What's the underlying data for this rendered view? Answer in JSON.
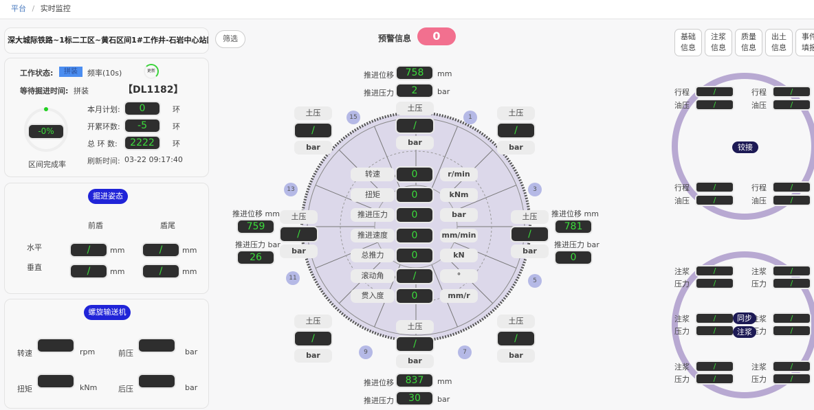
{
  "breadcrumb": {
    "home": "平台",
    "sep": "/",
    "current": "实时监控"
  },
  "project": {
    "title": "深大城际铁路~1标二工区~黄石区间1#工作井-石岩中心站区间"
  },
  "status": {
    "work_state_label": "工作状态:",
    "work_state": "拼装",
    "freq": "频率(10s)",
    "refresh": "更新",
    "wait_label": "等待掘进时间:",
    "wait_value": "拼装",
    "ring_code": "【DL1182】",
    "completion": "-0%",
    "completion_label": "区间完成率",
    "completion_fraction": 0,
    "rows": [
      {
        "label": "本月计划:",
        "value": "0",
        "unit": "环"
      },
      {
        "label": "开累环数:",
        "value": "-5",
        "unit": "环"
      },
      {
        "label": "总 环 数:",
        "value": "2222",
        "unit": "环"
      }
    ],
    "refresh_label": "刷新时间:",
    "refresh_time": "03-22 09:17:40"
  },
  "attitude": {
    "title": "掘进姿态",
    "col1": "前盾",
    "col2": "盾尾",
    "rows": [
      {
        "label": "水平",
        "v1": "/",
        "v2": "/",
        "unit": "mm"
      },
      {
        "label": "垂直",
        "v1": "/",
        "v2": "/",
        "unit": "mm"
      }
    ]
  },
  "screw": {
    "title": "螺旋输送机",
    "items": [
      {
        "label": "转速",
        "value": "",
        "unit": "rpm"
      },
      {
        "label": "前压",
        "value": "",
        "unit": "bar"
      },
      {
        "label": "扭矩",
        "value": "",
        "unit": "kNm"
      },
      {
        "label": "后压",
        "value": "",
        "unit": "bar"
      }
    ]
  },
  "filter": "筛选",
  "alert": {
    "label": "预警信息",
    "count": "0",
    "color": "#f2708f"
  },
  "center_rows": [
    {
      "label": "转速",
      "value": "0",
      "unit": "r/min"
    },
    {
      "label": "扭矩",
      "value": "0",
      "unit": "kNm"
    },
    {
      "label": "推进压力",
      "value": "0",
      "unit": "bar"
    },
    {
      "label": "推进速度",
      "value": "0",
      "unit": "mm/min"
    },
    {
      "label": "总推力",
      "value": "0",
      "unit": "kN"
    },
    {
      "label": "滚动角",
      "value": "/",
      "unit": "°"
    },
    {
      "label": "贯入度",
      "value": "0",
      "unit": "mm/r"
    }
  ],
  "earth": [
    {
      "label": "土压",
      "value": "/",
      "unit": "bar"
    },
    {
      "label": "土压",
      "value": "/",
      "unit": "bar"
    },
    {
      "label": "土压",
      "value": "/",
      "unit": "bar"
    },
    {
      "label": "土压",
      "value": "/",
      "unit": "bar"
    },
    {
      "label": "土压",
      "value": "/",
      "unit": "bar"
    },
    {
      "label": "土压",
      "value": "/",
      "unit": "bar"
    },
    {
      "label": "土压",
      "value": "/",
      "unit": "bar"
    },
    {
      "label": "土压",
      "value": "/",
      "unit": "bar"
    }
  ],
  "thrust": {
    "top": {
      "disp_label": "推进位移",
      "disp": "758",
      "disp_unit": "mm",
      "press_label": "推进压力",
      "press": "2",
      "press_unit": "bar"
    },
    "left": {
      "disp_label": "推进位移 mm",
      "disp": "759",
      "press_label": "推进压力 bar",
      "press": "26"
    },
    "right": {
      "disp_label": "推进位移 mm",
      "disp": "781",
      "press_label": "推进压力 bar",
      "press": "0"
    },
    "bottom": {
      "disp_label": "推进位移",
      "disp": "837",
      "disp_unit": "mm",
      "press_label": "推进压力",
      "press": "30",
      "press_unit": "bar"
    }
  },
  "badges": [
    "15",
    "1",
    "3",
    "13",
    "11",
    "5",
    "9",
    "7"
  ],
  "tabs": [
    "基础\n信息",
    "注浆\n信息",
    "质量\n信息",
    "出土\n信息",
    "事件\n填报"
  ],
  "articulation": {
    "center": "铰接",
    "items": [
      {
        "l1": "行程",
        "v1": "/",
        "l2": "油压",
        "v2": "/"
      },
      {
        "l1": "行程",
        "v1": "/",
        "l2": "油压",
        "v2": "/"
      },
      {
        "l1": "行程",
        "v1": "/",
        "l2": "油压",
        "v2": "/"
      },
      {
        "l1": "行程",
        "v1": "/",
        "l2": "油压",
        "v2": "/"
      }
    ]
  },
  "grouting": {
    "center1": "同步",
    "center2": "注浆",
    "items": [
      {
        "l1": "注浆",
        "v1": "/",
        "l2": "压力",
        "v2": "/"
      },
      {
        "l1": "注浆",
        "v1": "/",
        "l2": "压力",
        "v2": "/"
      },
      {
        "l1": "注浆",
        "v1": "/",
        "l2": "压力",
        "v2": "/"
      },
      {
        "l1": "注浆",
        "v1": "/",
        "l2": "压力",
        "v2": "/"
      },
      {
        "l1": "注浆",
        "v1": "/",
        "l2": "压力",
        "v2": "/"
      },
      {
        "l1": "注浆",
        "v1": "/",
        "l2": "压力",
        "v2": "/"
      }
    ]
  }
}
